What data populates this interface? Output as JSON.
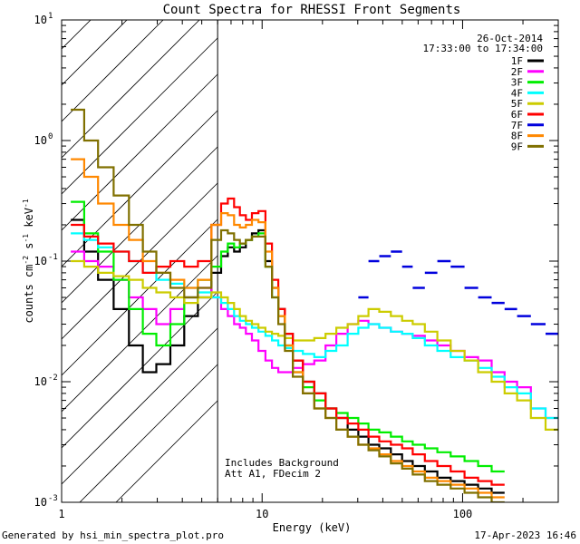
{
  "chart_data": {
    "type": "line",
    "title": "Count Spectra for RHESSI Front Segments",
    "xlabel": "Energy (keV)",
    "ylabel_parts": [
      "counts cm",
      "-2",
      " s",
      "-1",
      " keV",
      "-1"
    ],
    "x_scale": "log",
    "y_scale": "log",
    "xlim": [
      1,
      300
    ],
    "ylim": [
      0.001,
      10
    ],
    "x_tick_labels": [
      {
        "value": 1,
        "label": "1"
      },
      {
        "value": 10,
        "label": "10"
      },
      {
        "value": 100,
        "label": "100"
      }
    ],
    "y_tick_labels": [
      {
        "value": 0.001,
        "base": "10",
        "exp": "-3"
      },
      {
        "value": 0.01,
        "base": "10",
        "exp": "-2"
      },
      {
        "value": 0.1,
        "base": "10",
        "exp": "-1"
      },
      {
        "value": 1,
        "base": "10",
        "exp": "0"
      },
      {
        "value": 10,
        "base": "10",
        "exp": "1"
      }
    ],
    "hatched_region_kev": [
      1,
      6
    ],
    "annotation_top_right": [
      "26-Oct-2014",
      "17:33:00 to 17:34:00"
    ],
    "annotation_bottom": [
      "Includes Background",
      "Att A1, FDecim 2"
    ],
    "footer_left": "Generated by hsi_min_spectra_plot.pro",
    "footer_right": "17-Apr-2023 16:46",
    "x": [
      1.2,
      1.4,
      1.65,
      2.0,
      2.35,
      2.75,
      3.2,
      3.8,
      4.4,
      5.2,
      6.0,
      6.5,
      7.0,
      7.5,
      8.0,
      8.6,
      9.2,
      10.0,
      10.8,
      11.6,
      12.5,
      13.5,
      15.0,
      17.0,
      19.5,
      22.0,
      25.0,
      28.5,
      32.0,
      36.0,
      41.0,
      47.0,
      53.0,
      60.0,
      70.0,
      80.0,
      95.0,
      110.0,
      130.0,
      150.0,
      175.0,
      200.0,
      240.0,
      280.0
    ],
    "series": [
      {
        "name": "1F",
        "color": "#000000",
        "values": [
          0.22,
          0.12,
          0.07,
          0.04,
          0.02,
          0.012,
          0.014,
          0.02,
          0.035,
          0.05,
          0.08,
          0.11,
          0.13,
          0.12,
          0.13,
          0.15,
          0.17,
          0.18,
          0.1,
          0.06,
          0.04,
          0.025,
          0.015,
          0.01,
          0.008,
          0.006,
          0.005,
          0.004,
          0.0035,
          0.003,
          0.0028,
          0.0025,
          0.0022,
          0.002,
          0.0018,
          0.0016,
          0.0015,
          0.0014,
          0.0013,
          0.0012,
          null,
          null,
          null,
          null
        ]
      },
      {
        "name": "2F",
        "color": "#ff00ff",
        "values": [
          0.12,
          0.1,
          0.09,
          0.07,
          0.05,
          0.04,
          0.03,
          0.04,
          0.05,
          0.06,
          0.05,
          0.04,
          0.035,
          0.03,
          0.028,
          0.025,
          0.022,
          0.018,
          0.015,
          0.013,
          0.012,
          0.012,
          0.013,
          0.014,
          0.015,
          0.02,
          0.025,
          0.03,
          0.032,
          0.03,
          0.028,
          0.026,
          0.025,
          0.024,
          0.022,
          0.02,
          0.018,
          0.016,
          0.015,
          0.012,
          0.01,
          0.009,
          0.006,
          0.005
        ]
      },
      {
        "name": "3F",
        "color": "#00ee00",
        "values": [
          0.31,
          0.17,
          0.12,
          0.07,
          0.04,
          0.025,
          0.02,
          0.03,
          0.05,
          0.07,
          0.09,
          0.12,
          0.14,
          0.13,
          0.14,
          0.15,
          0.16,
          0.17,
          0.09,
          0.05,
          0.035,
          0.02,
          0.012,
          0.009,
          0.007,
          0.006,
          0.0055,
          0.005,
          0.0045,
          0.004,
          0.0038,
          0.0035,
          0.0032,
          0.003,
          0.0028,
          0.0026,
          0.0024,
          0.0022,
          0.002,
          0.0018,
          null,
          null,
          null,
          null
        ]
      },
      {
        "name": "4F",
        "color": "#00ffff",
        "values": [
          0.17,
          0.15,
          0.13,
          0.12,
          0.1,
          0.08,
          0.07,
          0.065,
          0.06,
          0.055,
          0.05,
          0.045,
          0.04,
          0.035,
          0.032,
          0.03,
          0.028,
          0.026,
          0.024,
          0.022,
          0.02,
          0.019,
          0.018,
          0.017,
          0.016,
          0.018,
          0.02,
          0.025,
          0.028,
          0.03,
          0.028,
          0.026,
          0.025,
          0.023,
          0.02,
          0.018,
          0.016,
          0.015,
          0.013,
          0.011,
          0.009,
          0.008,
          0.006,
          0.005
        ]
      },
      {
        "name": "5F",
        "color": "#cccc00",
        "values": [
          0.1,
          0.09,
          0.08,
          0.075,
          0.07,
          0.06,
          0.055,
          0.05,
          0.045,
          0.05,
          0.055,
          0.05,
          0.045,
          0.04,
          0.035,
          0.032,
          0.03,
          0.028,
          0.026,
          0.025,
          0.024,
          0.023,
          0.022,
          0.022,
          0.023,
          0.025,
          0.028,
          0.03,
          0.035,
          0.04,
          0.038,
          0.035,
          0.032,
          0.03,
          0.026,
          0.022,
          0.018,
          0.015,
          0.012,
          0.01,
          0.008,
          0.007,
          0.005,
          0.004
        ]
      },
      {
        "name": "6F",
        "color": "#ff0000",
        "values": [
          0.2,
          0.16,
          0.14,
          0.12,
          0.1,
          0.08,
          0.09,
          0.1,
          0.09,
          0.1,
          0.2,
          0.3,
          0.33,
          0.28,
          0.24,
          0.22,
          0.25,
          0.26,
          0.14,
          0.07,
          0.04,
          0.025,
          0.015,
          0.01,
          0.008,
          0.006,
          0.005,
          0.0045,
          0.004,
          0.0035,
          0.0032,
          0.003,
          0.0028,
          0.0025,
          0.0022,
          0.002,
          0.0018,
          0.0016,
          0.0015,
          0.0014,
          null,
          null,
          null,
          null
        ]
      },
      {
        "name": "7F",
        "color": "#0000dd",
        "values": [
          null,
          null,
          null,
          null,
          null,
          null,
          null,
          null,
          null,
          null,
          null,
          null,
          null,
          null,
          null,
          null,
          null,
          null,
          null,
          null,
          null,
          null,
          null,
          null,
          null,
          null,
          null,
          null,
          0.05,
          0.1,
          0.11,
          0.12,
          0.09,
          0.06,
          0.08,
          0.1,
          0.09,
          0.06,
          0.05,
          0.045,
          0.04,
          0.035,
          0.03,
          0.025
        ]
      },
      {
        "name": "8F",
        "color": "#ff8800",
        "values": [
          0.7,
          0.5,
          0.3,
          0.2,
          0.15,
          0.1,
          0.08,
          0.07,
          0.06,
          0.07,
          0.2,
          0.25,
          0.24,
          0.2,
          0.19,
          0.2,
          0.22,
          0.21,
          0.12,
          0.06,
          0.035,
          0.02,
          0.012,
          0.008,
          0.006,
          0.005,
          0.004,
          0.0035,
          0.003,
          0.0028,
          0.0025,
          0.0022,
          0.002,
          0.0018,
          0.0016,
          0.0015,
          0.0014,
          0.0013,
          0.0012,
          0.0011,
          null,
          null,
          null,
          null
        ]
      },
      {
        "name": "9F",
        "color": "#807000",
        "values": [
          1.8,
          1.0,
          0.6,
          0.35,
          0.2,
          0.12,
          0.08,
          0.06,
          0.05,
          0.06,
          0.15,
          0.18,
          0.17,
          0.15,
          0.14,
          0.15,
          0.16,
          0.16,
          0.09,
          0.05,
          0.03,
          0.018,
          0.011,
          0.008,
          0.006,
          0.005,
          0.004,
          0.0035,
          0.003,
          0.0027,
          0.0024,
          0.0021,
          0.0019,
          0.0017,
          0.0015,
          0.0014,
          0.0013,
          0.0012,
          0.0011,
          0.001,
          null,
          null,
          null,
          null
        ]
      }
    ]
  }
}
